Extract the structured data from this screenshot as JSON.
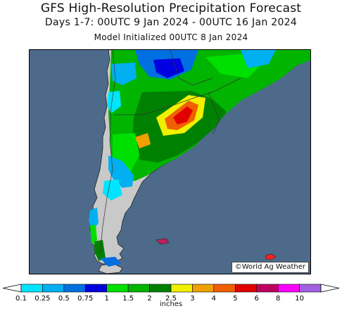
{
  "header": {
    "title": "GFS High-Resolution Precipitation Forecast",
    "period": "Days 1-7: 00UTC 9 Jan 2024 - 00UTC 16 Jan 2024",
    "init": "Model Initialized 00UTC 8 Jan 2024"
  },
  "map": {
    "credit": "©World Ag Weather",
    "colors": {
      "ocean": "#4d6a8a",
      "land": "#c9c9c9",
      "border": "#333333"
    }
  },
  "legend": {
    "units": "inches",
    "ticks": [
      "0.1",
      "0.25",
      "0.5",
      "0.75",
      "1",
      "1.5",
      "2",
      "2.5",
      "3",
      "4",
      "5",
      "6",
      "8",
      "10"
    ],
    "colors": [
      "#00e5ff",
      "#00b0f0",
      "#0070e0",
      "#0000e0",
      "#00e000",
      "#00b400",
      "#008000",
      "#f0f000",
      "#f0a000",
      "#f06000",
      "#e00000",
      "#c00060",
      "#ff00ff",
      "#a060e0"
    ]
  }
}
